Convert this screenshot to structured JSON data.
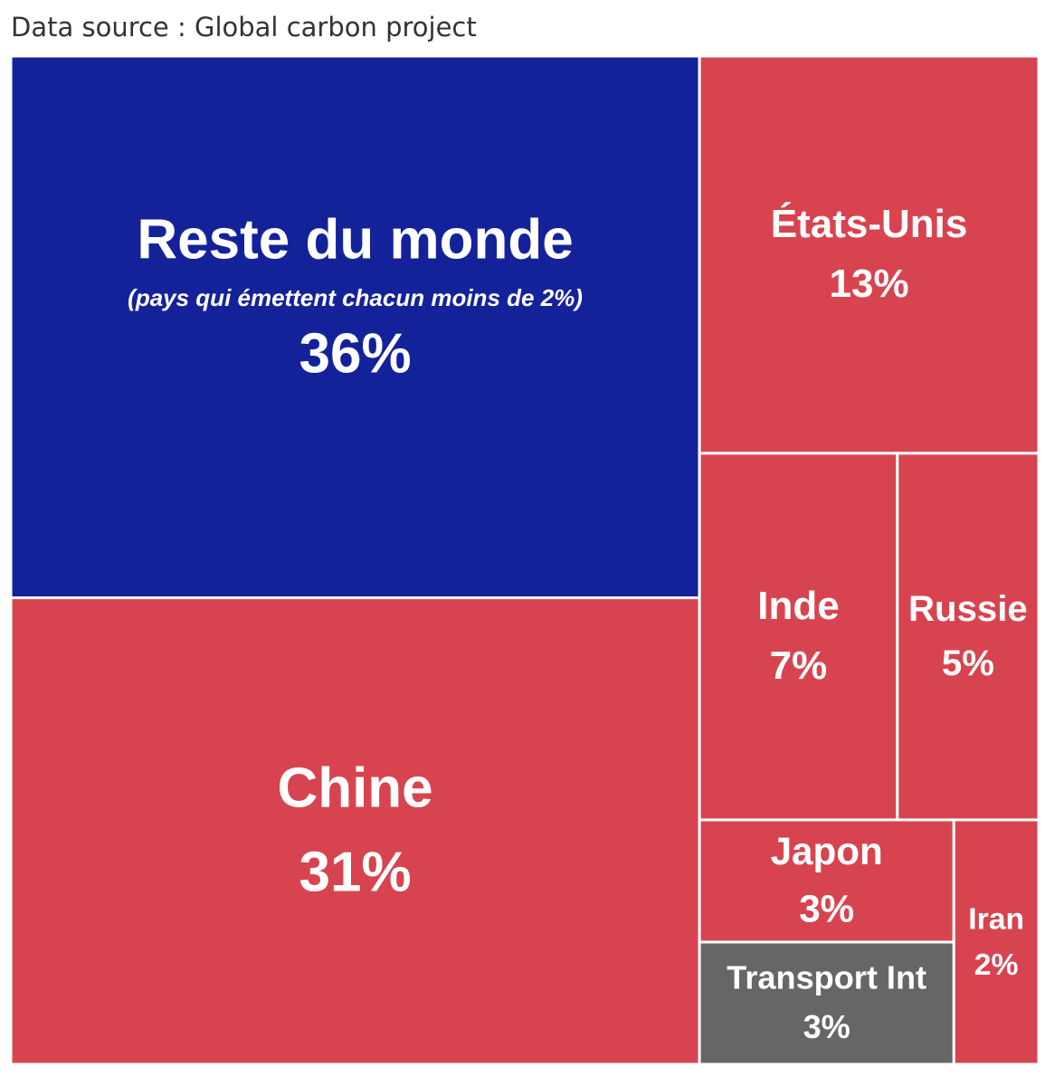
{
  "chart_data": {
    "type": "treemap",
    "source": "Data source : Global carbon project",
    "categories": [
      "Reste du monde",
      "Chine",
      "États-Unis",
      "Inde",
      "Russie",
      "Japon",
      "Transport Int",
      "Iran"
    ],
    "values": [
      36,
      31,
      13,
      7,
      5,
      3,
      3,
      2
    ],
    "value_labels": [
      "36%",
      "31%",
      "13%",
      "7%",
      "5%",
      "3%",
      "3%",
      "2%"
    ],
    "colors": [
      "#14229a",
      "#d7444f",
      "#d7444f",
      "#d7444f",
      "#d7444f",
      "#d7444f",
      "#666666",
      "#d7444f"
    ],
    "annotation": "(pays qui émettent chacun moins de 2%)"
  }
}
